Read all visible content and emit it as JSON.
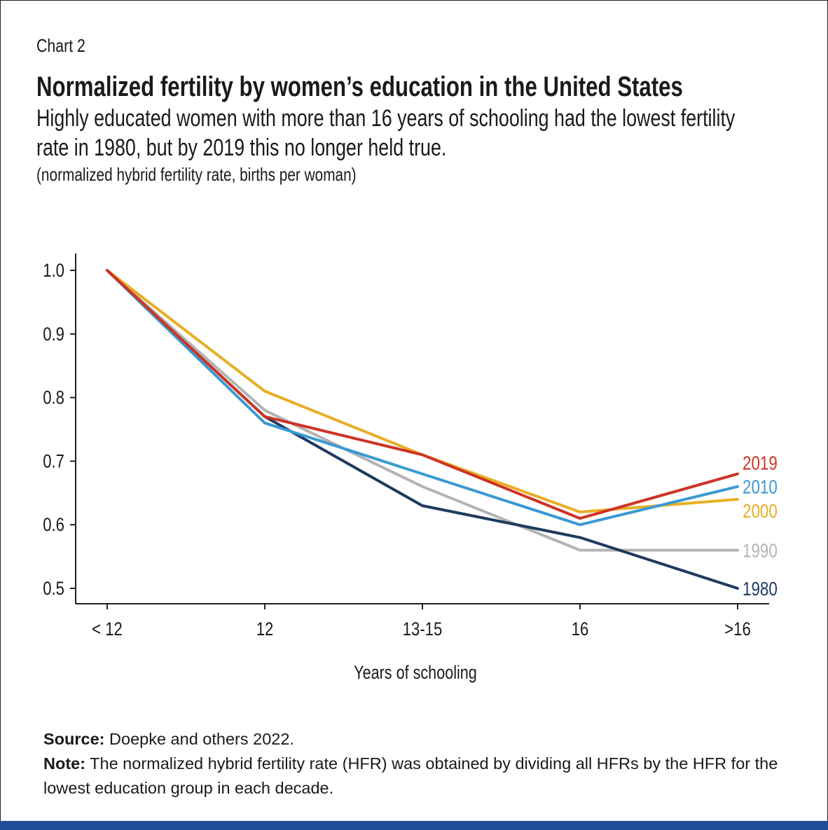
{
  "header": {
    "chart_number": "Chart 2",
    "title": "Normalized fertility by women’s education in the United States",
    "subtitle": "Highly educated women with more than 16 years of schooling had the lowest fertility rate in 1980, but by 2019 this no longer held true.",
    "units": "(normalized hybrid fertility rate, births per woman)"
  },
  "footer": {
    "source_label": "Source:",
    "source_text": "Doepke and others 2022.",
    "note_label": "Note:",
    "note_text": "The normalized hybrid fertility rate (HFR) was obtained by dividing all HFRs by the HFR for the lowest education group in each decade."
  },
  "colors": {
    "accent_bar": "#1f4e96"
  },
  "chart_data": {
    "type": "line",
    "xlabel": "Years of schooling",
    "ylabel": "",
    "categories": [
      "< 12",
      "12",
      "13-15",
      "16",
      ">16"
    ],
    "ylim": [
      0.5,
      1.0
    ],
    "yticks": [
      0.5,
      0.6,
      0.7,
      0.8,
      0.9,
      1.0
    ],
    "ytick_labels": [
      "0.5",
      "0.6",
      "0.7",
      "0.8",
      "0.9",
      "1.0"
    ],
    "grid": false,
    "legend": "direct labels at line ends",
    "series": [
      {
        "name": "1990",
        "color": "#b3b3b3",
        "values": [
          1.0,
          0.78,
          0.66,
          0.56,
          0.56
        ]
      },
      {
        "name": "1980",
        "color": "#1e3a5f",
        "values": [
          1.0,
          0.77,
          0.63,
          0.58,
          0.5
        ]
      },
      {
        "name": "2000",
        "color": "#e9ae25",
        "values": [
          1.0,
          0.81,
          0.71,
          0.62,
          0.64
        ]
      },
      {
        "name": "2010",
        "color": "#3a9ad2",
        "values": [
          1.0,
          0.76,
          0.68,
          0.6,
          0.66
        ]
      },
      {
        "name": "2019",
        "color": "#cd3426",
        "values": [
          1.0,
          0.77,
          0.71,
          0.61,
          0.68
        ]
      }
    ]
  }
}
